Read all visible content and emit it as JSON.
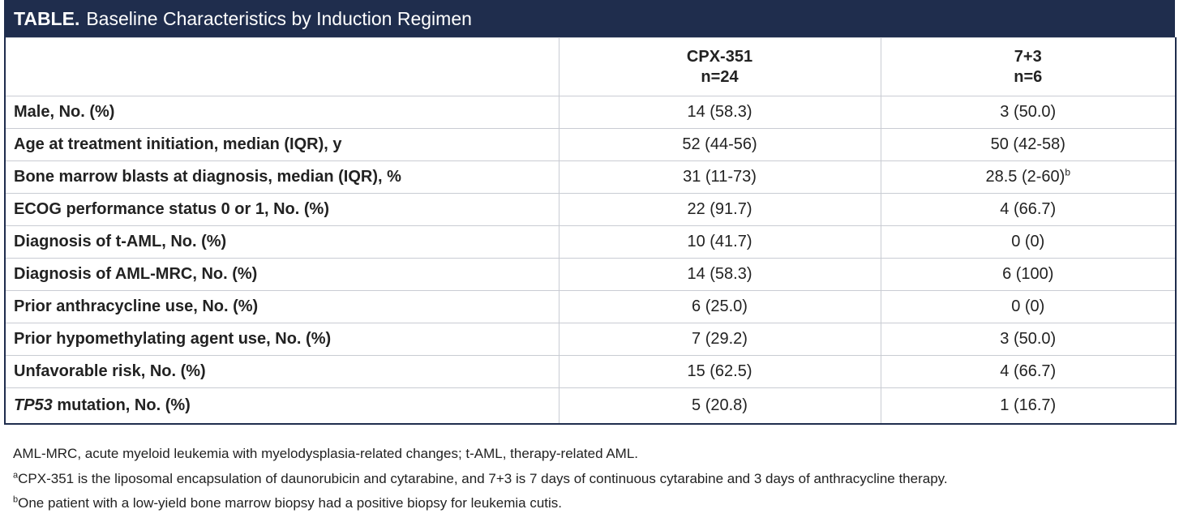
{
  "title": {
    "label": "TABLE.",
    "text": "Baseline Characteristics by Induction Regimen"
  },
  "columns": [
    {
      "name": "CPX-351",
      "n": "n=24"
    },
    {
      "name": "7+3",
      "n": "n=6"
    }
  ],
  "rows": [
    {
      "label": "Male, No. (%)",
      "cpx": "14 (58.3)",
      "seven": "3 (50.0)"
    },
    {
      "label": "Age at treatment initiation, median (IQR), y",
      "cpx": "52 (44-56)",
      "seven": "50 (42-58)"
    },
    {
      "label": "Bone marrow blasts at diagnosis, median (IQR), %",
      "cpx": "31 (11-73)",
      "seven": "28.5 (2-60)",
      "seven_sup": "b"
    },
    {
      "label": "ECOG performance status 0 or 1, No. (%)",
      "cpx": "22 (91.7)",
      "seven": "4 (66.7)"
    },
    {
      "label": "Diagnosis of t-AML, No. (%)",
      "cpx": "10 (41.7)",
      "seven": "0 (0)"
    },
    {
      "label": "Diagnosis of AML-MRC, No. (%)",
      "cpx": "14 (58.3)",
      "seven": "6 (100)"
    },
    {
      "label": "Prior anthracycline use, No. (%)",
      "cpx": "6 (25.0)",
      "seven": "0 (0)"
    },
    {
      "label": "Prior hypomethylating agent use, No. (%)",
      "cpx": "7 (29.2)",
      "seven": "3 (50.0)"
    },
    {
      "label": "Unfavorable risk, No. (%)",
      "cpx": "15 (62.5)",
      "seven": "4 (66.7)"
    },
    {
      "label_italic": "TP53",
      "label": " mutation, No. (%)",
      "cpx": "5 (20.8)",
      "seven": "1 (16.7)"
    }
  ],
  "footnotes": {
    "abbrev": "AML-MRC, acute myeloid leukemia with myelodysplasia-related changes; t-AML, therapy-related AML.",
    "a_mark": "a",
    "a_text": "CPX-351 is the liposomal encapsulation of daunorubicin and cytarabine, and 7+3 is 7 days of continuous cytarabine and 3 days of anthracycline therapy.",
    "b_mark": "b",
    "b_text": "One patient with a low-yield bone marrow biopsy had a positive biopsy for leukemia cutis."
  }
}
